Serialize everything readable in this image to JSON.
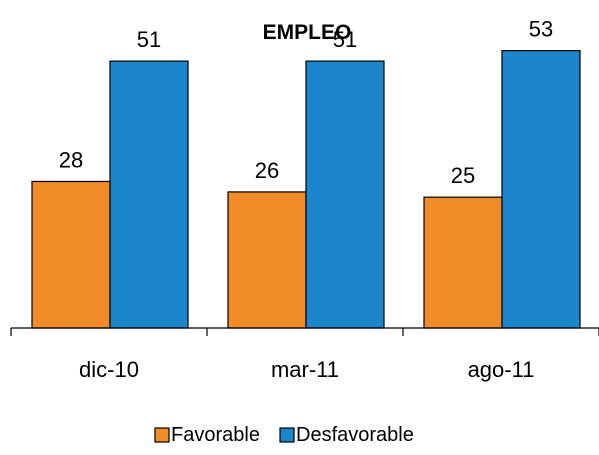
{
  "chart_data": {
    "type": "bar",
    "title": "EMPLEO",
    "categories": [
      "dic-10",
      "mar-11",
      "ago-11"
    ],
    "series": [
      {
        "name": "Favorable",
        "values": [
          28,
          26,
          25
        ],
        "color": "#F28C28"
      },
      {
        "name": "Desfavorable",
        "values": [
          51,
          51,
          53
        ],
        "color": "#1B86CC"
      }
    ],
    "ylim": [
      0,
      60
    ],
    "grid": false,
    "legend_position": "bottom"
  }
}
